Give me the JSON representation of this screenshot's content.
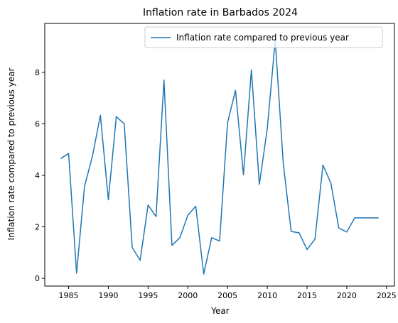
{
  "chart_data": {
    "type": "line",
    "title": "Inflation rate in Barbados 2024",
    "xlabel": "Year",
    "ylabel": "Inflation rate compared to previous year",
    "xlim": [
      1982,
      2026
    ],
    "ylim": [
      -0.3,
      9.9
    ],
    "xticks": [
      1985,
      1990,
      1995,
      2000,
      2005,
      2010,
      2015,
      2020,
      2025
    ],
    "yticks": [
      0,
      2,
      4,
      6,
      8
    ],
    "grid": false,
    "legend_position": "top-right",
    "series": [
      {
        "name": "Inflation rate compared to previous year",
        "color": "#1f77b4",
        "x": [
          1984,
          1985,
          1986,
          1987,
          1988,
          1989,
          1990,
          1991,
          1992,
          1993,
          1994,
          1995,
          1996,
          1997,
          1998,
          1999,
          2000,
          2001,
          2002,
          2003,
          2004,
          2005,
          2006,
          2007,
          2008,
          2009,
          2010,
          2011,
          2012,
          2013,
          2014,
          2015,
          2016,
          2017,
          2018,
          2019,
          2020,
          2021,
          2022,
          2023,
          2024
        ],
        "values": [
          4.65,
          4.85,
          0.2,
          3.57,
          4.75,
          6.33,
          3.05,
          6.28,
          6.0,
          1.2,
          0.7,
          2.85,
          2.4,
          7.7,
          1.28,
          1.58,
          2.45,
          2.8,
          0.17,
          1.58,
          1.45,
          6.05,
          7.3,
          4.02,
          8.1,
          3.65,
          5.82,
          9.25,
          4.5,
          1.82,
          1.77,
          1.12,
          1.52,
          4.4,
          3.7,
          1.95,
          1.8,
          2.35,
          2.35,
          2.35,
          2.35
        ]
      }
    ]
  }
}
